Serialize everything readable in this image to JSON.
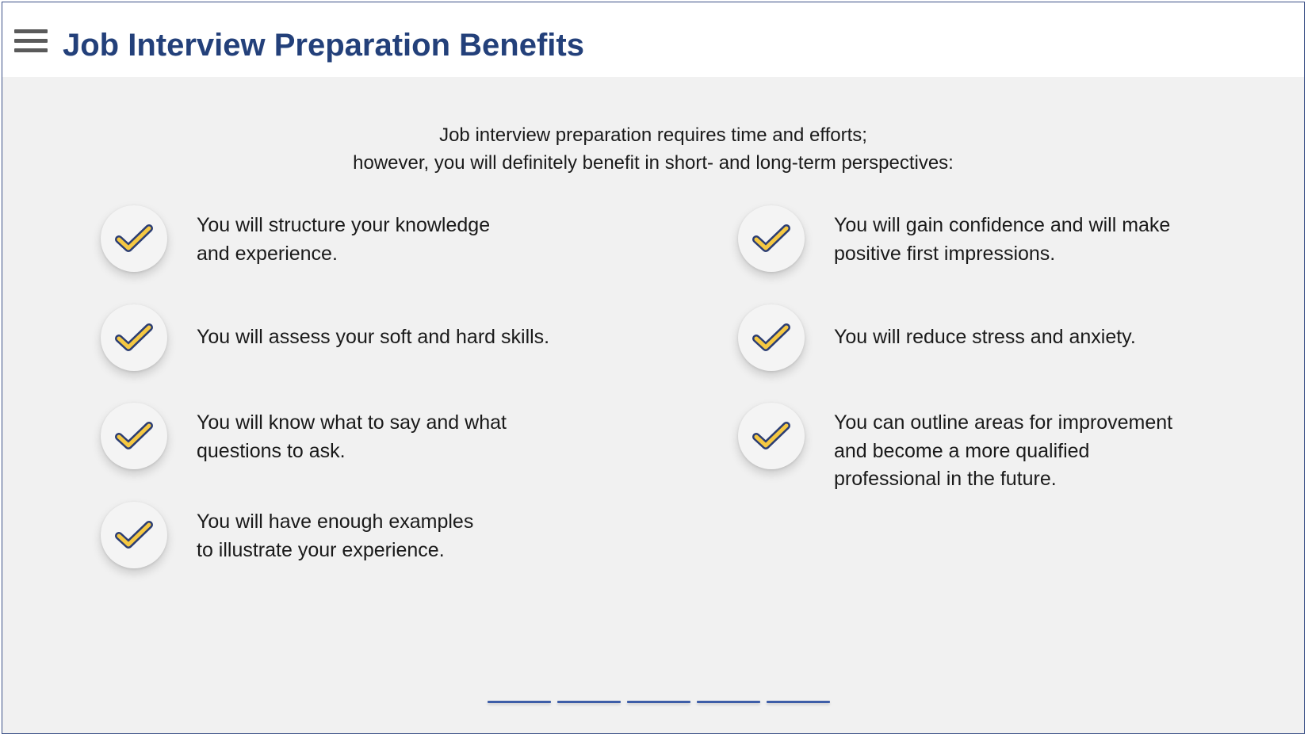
{
  "header": {
    "title": "Job Interview Preparation Benefits",
    "menu_icon": "hamburger-menu-icon"
  },
  "intro": {
    "line1": "Job interview preparation requires time and efforts;",
    "line2": "however, you will definitely benefit in short- and long-term perspectives:"
  },
  "benefits": {
    "left": [
      "You will structure your knowledge\nand experience.",
      "You will assess your soft and hard skills.",
      "You will know what to say and what\nquestions to ask.",
      "You will have enough examples\nto illustrate your experience."
    ],
    "right": [
      "You will gain confidence and will make\npositive first impressions.",
      "You will reduce stress and anxiety.",
      "You can outline areas for improvement\nand become a more qualified\nprofessional in the future."
    ]
  },
  "check_icon": "checkmark-icon",
  "colors": {
    "title": "#23407a",
    "check_fill": "#f5c842",
    "check_outline": "#2b3d73",
    "pager": "#3e5ea8"
  },
  "pager": {
    "count": 5
  }
}
